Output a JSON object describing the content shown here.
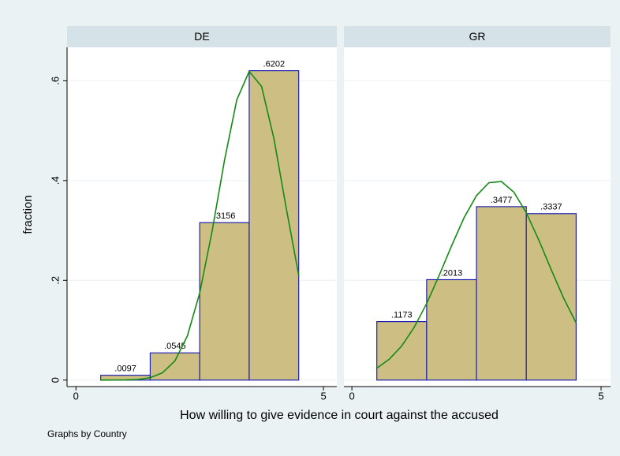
{
  "y_label": "fraction",
  "x_label": "How willing to give evidence in court against the accused",
  "note": "Graphs by Country",
  "chart_data": [
    {
      "type": "histogram",
      "title": "DE",
      "bins": [
        0.5,
        1.5,
        2.5,
        3.5,
        4.5
      ],
      "values": [
        0.0097,
        0.0545,
        0.3156,
        0.6202
      ],
      "value_labels": [
        ".0097",
        ".0545",
        ".3156",
        ".6202"
      ],
      "color": "#cdbf84",
      "edge_color": "#2020b0",
      "curve": {
        "color": "#138a13",
        "x": [
          0.5,
          0.75,
          1,
          1.25,
          1.5,
          1.75,
          2,
          2.25,
          2.5,
          2.75,
          3,
          3.25,
          3.5,
          3.75,
          4,
          4.25,
          4.5
        ],
        "values": [
          0,
          0.0001,
          0.0003,
          0.0013,
          0.0048,
          0.0146,
          0.0385,
          0.0884,
          0.1747,
          0.2985,
          0.4406,
          0.5619,
          0.6188,
          0.5888,
          0.4839,
          0.3436,
          0.21
        ]
      },
      "xlim": [
        -0.18,
        5.27
      ],
      "xticks": [
        0,
        5
      ],
      "ylim": [
        -0.013,
        0.667
      ],
      "yticks": [
        0,
        {
          "value": 0.2,
          "label": ".2"
        },
        {
          "value": 0.4,
          "label": ".4"
        },
        {
          "value": 0.6,
          "label": ".6"
        }
      ],
      "grid": true
    },
    {
      "type": "histogram",
      "title": "GR",
      "bins": [
        0.5,
        1.5,
        2.5,
        3.5,
        4.5
      ],
      "values": [
        0.1173,
        0.2013,
        0.3477,
        0.3337
      ],
      "value_labels": [
        ".1173",
        ".2013",
        ".3477",
        ".3337"
      ],
      "color": "#cdbf84",
      "edge_color": "#2020b0",
      "curve": {
        "color": "#138a13",
        "x": [
          0.5,
          0.75,
          1,
          1.25,
          1.5,
          1.75,
          2,
          2.25,
          2.5,
          2.75,
          3,
          3.25,
          3.5,
          3.75,
          4,
          4.25,
          4.5
        ],
        "values": [
          0.024,
          0.0418,
          0.0685,
          0.1057,
          0.1535,
          0.2096,
          0.2692,
          0.3254,
          0.3699,
          0.3956,
          0.398,
          0.3768,
          0.3354,
          0.281,
          0.2214,
          0.1641,
          0.1145
        ]
      },
      "xlim": [
        -0.16,
        5.19
      ],
      "xticks": [
        0,
        5
      ],
      "ylim": [
        -0.013,
        0.667
      ],
      "grid": true
    }
  ]
}
